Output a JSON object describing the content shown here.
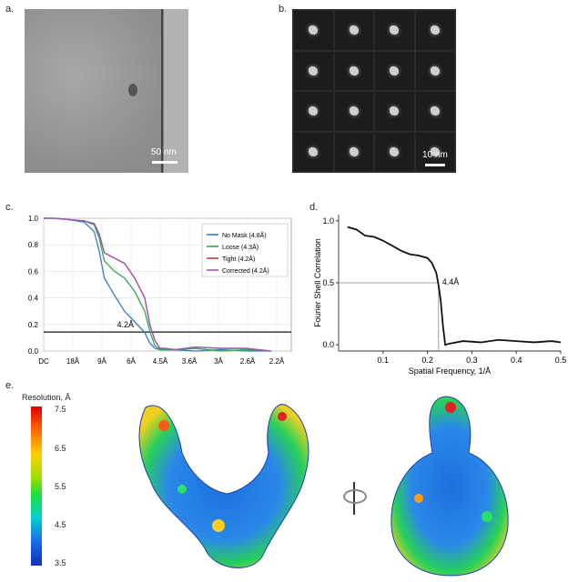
{
  "panel_labels": {
    "a": "a.",
    "b": "b.",
    "c": "c.",
    "d": "d.",
    "e": "e."
  },
  "panel_a": {
    "scale_bar": "50 nm"
  },
  "panel_b": {
    "scale_bar": "10 nm"
  },
  "panel_c": {
    "annotation": "4.2Å",
    "legend": [
      "No Mask (4.8Å)",
      "Loose (4.3Å)",
      "Tight (4.2Å)",
      "Corrected (4.2Å)"
    ],
    "colors": [
      "#3a7bc2",
      "#2fa84f",
      "#c43b3b",
      "#9b59b6"
    ]
  },
  "panel_d": {
    "ylabel": "Fourier Shell Correlation",
    "xlabel": "Spatial Frequency, 1/Å",
    "annotation": "4.4Å"
  },
  "panel_e": {
    "title": "Resolution, Å",
    "ticks": [
      "7.5",
      "6.5",
      "5.5",
      "4.5",
      "3.5"
    ]
  },
  "chart_data": [
    {
      "type": "line",
      "title": "",
      "xlabel": "",
      "ylabel": "",
      "x_tick_labels": [
        "DC",
        "18Å",
        "9Å",
        "6Å",
        "4.5Å",
        "3.6Å",
        "3Å",
        "2.6Å",
        "2.2Å"
      ],
      "y_ticks": [
        0.0,
        0.2,
        0.4,
        0.6,
        0.8,
        1.0
      ],
      "ylim": [
        0,
        1.0
      ],
      "threshold": 0.143,
      "x": [
        0,
        0.02,
        0.05,
        0.08,
        0.1,
        0.11,
        0.12,
        0.14,
        0.16,
        0.18,
        0.2,
        0.21,
        0.22,
        0.23,
        0.24,
        0.26,
        0.3,
        0.35,
        0.4,
        0.45
      ],
      "series": [
        {
          "name": "No Mask (4.8Å)",
          "values": [
            1.0,
            1.0,
            0.99,
            0.97,
            0.9,
            0.75,
            0.55,
            0.42,
            0.3,
            0.22,
            0.14,
            0.06,
            0.02,
            0.01,
            0.01,
            0.01,
            0.0,
            0.01,
            0.0,
            0.0
          ]
        },
        {
          "name": "Loose (4.3Å)",
          "values": [
            1.0,
            1.0,
            0.99,
            0.98,
            0.95,
            0.85,
            0.68,
            0.6,
            0.55,
            0.45,
            0.3,
            0.15,
            0.04,
            0.01,
            0.01,
            0.01,
            0.02,
            0.0,
            0.01,
            0.0
          ]
        },
        {
          "name": "Tight (4.2Å)",
          "values": [
            1.0,
            1.0,
            0.99,
            0.98,
            0.96,
            0.88,
            0.74,
            0.7,
            0.66,
            0.55,
            0.4,
            0.2,
            0.08,
            0.02,
            0.02,
            0.01,
            0.03,
            0.02,
            0.02,
            0.0
          ]
        },
        {
          "name": "Corrected (4.2Å)",
          "values": [
            1.0,
            1.0,
            0.99,
            0.98,
            0.96,
            0.88,
            0.74,
            0.7,
            0.66,
            0.55,
            0.4,
            0.2,
            0.08,
            0.02,
            0.02,
            0.01,
            0.03,
            0.02,
            0.02,
            0.0
          ]
        }
      ]
    },
    {
      "type": "line",
      "title": "",
      "xlabel": "Spatial Frequency, 1/Å",
      "ylabel": "Fourier Shell Correlation",
      "x_ticks": [
        0.1,
        0.2,
        0.3,
        0.4,
        0.5
      ],
      "y_ticks": [
        0.0,
        0.5,
        1.0
      ],
      "xlim": [
        0,
        0.5
      ],
      "ylim": [
        -0.05,
        1.05
      ],
      "threshold": 0.5,
      "series": [
        {
          "name": "",
          "x": [
            0.02,
            0.04,
            0.06,
            0.08,
            0.1,
            0.12,
            0.14,
            0.16,
            0.18,
            0.2,
            0.21,
            0.22,
            0.225,
            0.23,
            0.235,
            0.24,
            0.25,
            0.28,
            0.32,
            0.36,
            0.4,
            0.44,
            0.48,
            0.5
          ],
          "values": [
            0.95,
            0.93,
            0.88,
            0.87,
            0.84,
            0.8,
            0.76,
            0.73,
            0.72,
            0.7,
            0.66,
            0.58,
            0.48,
            0.35,
            0.15,
            0.0,
            0.01,
            0.03,
            0.02,
            0.04,
            0.03,
            0.02,
            0.03,
            0.02
          ]
        }
      ]
    }
  ]
}
